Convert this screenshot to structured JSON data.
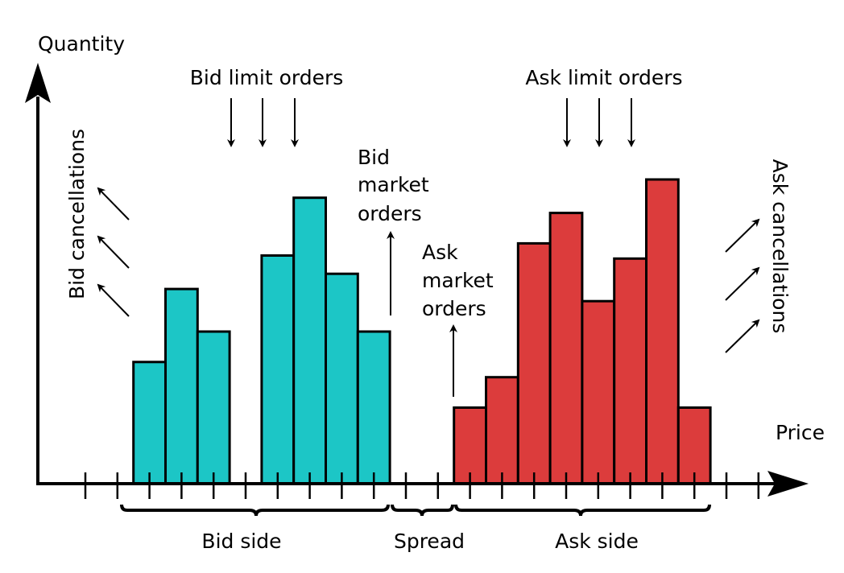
{
  "axes": {
    "y_label": "Quantity",
    "x_label": "Price"
  },
  "labels": {
    "bid_limit_orders": "Bid limit orders",
    "ask_limit_orders": "Ask limit orders",
    "bid_market_orders": [
      "Bid",
      "market",
      "orders"
    ],
    "ask_market_orders": [
      "Ask",
      "market",
      "orders"
    ],
    "bid_cancellations": "Bid cancellations",
    "ask_cancellations": "Ask cancellations",
    "bid_side": "Bid side",
    "spread": "Spread",
    "ask_side": "Ask side"
  },
  "colors": {
    "bid": "#1cc6c6",
    "ask": "#dc3c3c",
    "ink": "#000000"
  },
  "chart_data": {
    "type": "bar",
    "y_axis": "Quantity",
    "x_axis": "Price",
    "x_ticks": 22,
    "bid_levels": [
      {
        "tick": 3,
        "quantity": 4.0
      },
      {
        "tick": 4,
        "quantity": 6.4
      },
      {
        "tick": 5,
        "quantity": 5.0
      },
      {
        "tick": 6,
        "quantity": 0
      },
      {
        "tick": 7,
        "quantity": 7.5
      },
      {
        "tick": 8,
        "quantity": 9.4
      },
      {
        "tick": 9,
        "quantity": 6.9
      },
      {
        "tick": 10,
        "quantity": 5.0
      }
    ],
    "ask_levels": [
      {
        "tick": 13,
        "quantity": 2.5
      },
      {
        "tick": 14,
        "quantity": 3.5
      },
      {
        "tick": 15,
        "quantity": 7.9
      },
      {
        "tick": 16,
        "quantity": 8.9
      },
      {
        "tick": 17,
        "quantity": 6.0
      },
      {
        "tick": 18,
        "quantity": 7.4
      },
      {
        "tick": 19,
        "quantity": 10.0
      },
      {
        "tick": 20,
        "quantity": 2.5
      }
    ]
  }
}
